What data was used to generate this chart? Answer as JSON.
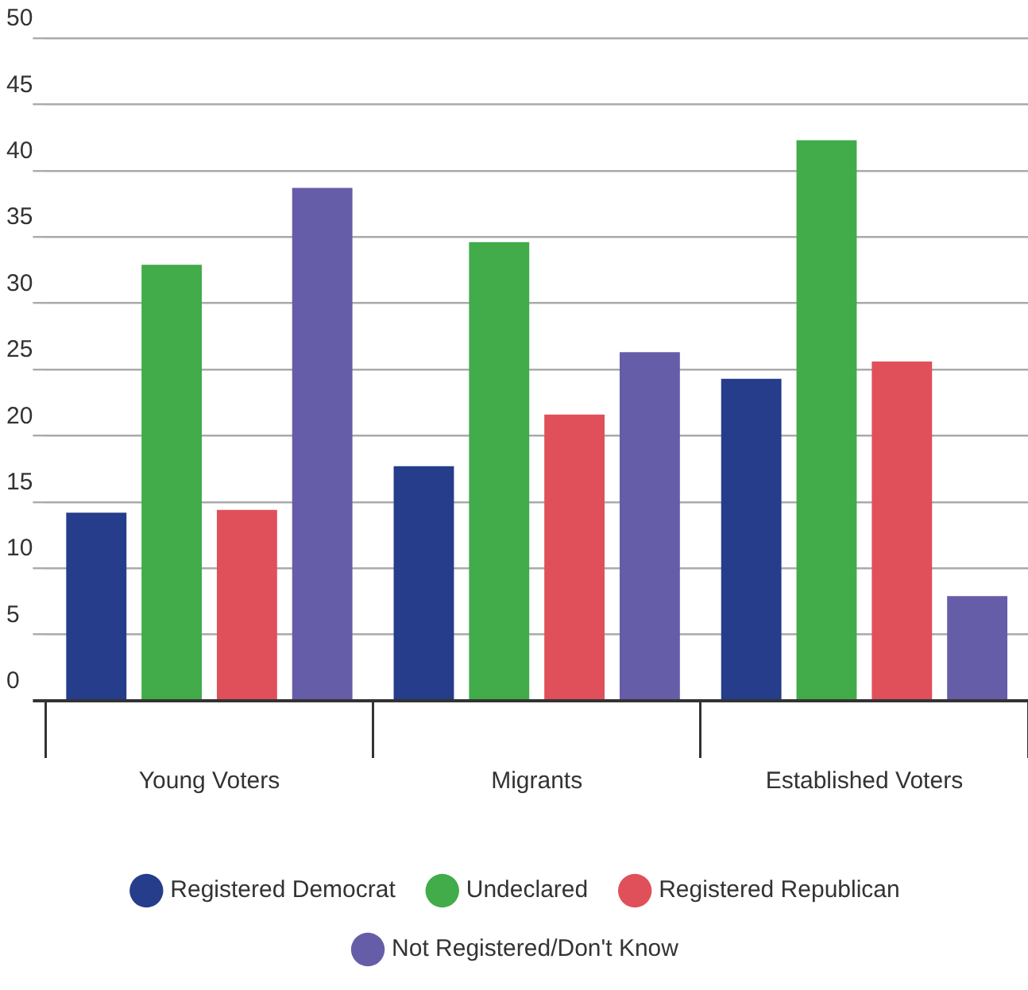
{
  "chart_data": {
    "type": "bar",
    "categories": [
      "Young Voters",
      "Migrants",
      "Established Voters"
    ],
    "series": [
      {
        "name": "Registered Democrat",
        "color": "#253d8a",
        "values": [
          14.2,
          17.7,
          24.3
        ]
      },
      {
        "name": "Undeclared",
        "color": "#42ab4a",
        "values": [
          32.9,
          34.6,
          42.3
        ]
      },
      {
        "name": "Registered Republican",
        "color": "#e0505a",
        "values": [
          14.4,
          21.6,
          25.6
        ]
      },
      {
        "name": "Not Registered/Don't Know",
        "color": "#665da9",
        "values": [
          38.7,
          26.3,
          7.9
        ]
      }
    ],
    "ylim": [
      0,
      50
    ],
    "yticks": [
      0,
      5,
      10,
      15,
      20,
      25,
      30,
      35,
      40,
      45,
      50
    ],
    "grid": "y",
    "legend": "bottom"
  }
}
